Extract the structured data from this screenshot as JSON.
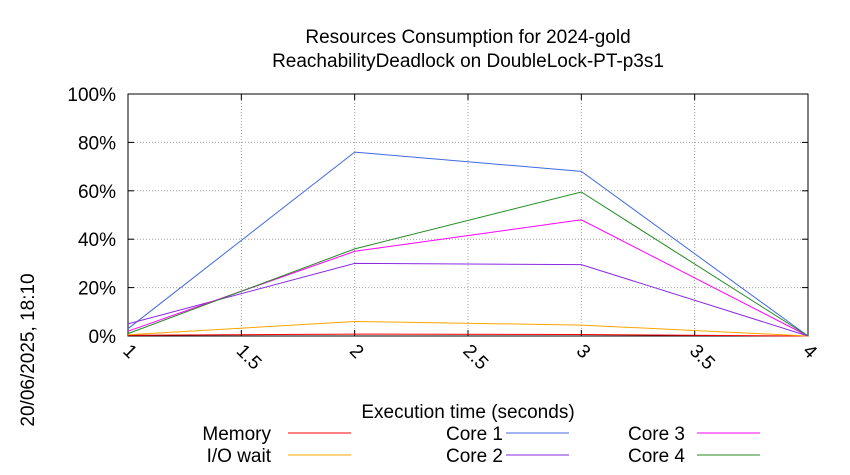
{
  "chart_data": {
    "type": "line",
    "title_line1": "Resources Consumption for 2024-gold",
    "title_line2": "ReachabilityDeadlock on DoubleLock-PT-p3s1",
    "xlabel": "Execution time (seconds)",
    "ylabel": "",
    "side_label": "20/06/2025, 18:10",
    "xlim": [
      1,
      4
    ],
    "ylim": [
      0,
      100
    ],
    "x_ticks": [
      "1",
      "1.5",
      "2",
      "2.5",
      "3",
      "3.5",
      "4"
    ],
    "y_ticks": [
      "0%",
      "20%",
      "40%",
      "60%",
      "80%",
      "100%"
    ],
    "grid": true,
    "legend_position": "bottom",
    "x": [
      1,
      2,
      3,
      4
    ],
    "series": [
      {
        "name": "Memory",
        "color": "#ff0000",
        "values": [
          0.3,
          0.8,
          0.6,
          0
        ]
      },
      {
        "name": "I/O wait",
        "color": "#ffa500",
        "values": [
          0.5,
          6,
          4.5,
          0
        ]
      },
      {
        "name": "Core 1",
        "color": "#4169e1",
        "values": [
          3,
          76,
          68,
          0
        ]
      },
      {
        "name": "Core 2",
        "color": "#8a2be2",
        "values": [
          5,
          30,
          29.5,
          0
        ]
      },
      {
        "name": "Core 3",
        "color": "#ff00ff",
        "values": [
          2,
          35,
          48,
          0
        ]
      },
      {
        "name": "Core 4",
        "color": "#228b22",
        "values": [
          1,
          36,
          59.5,
          0
        ]
      }
    ]
  }
}
